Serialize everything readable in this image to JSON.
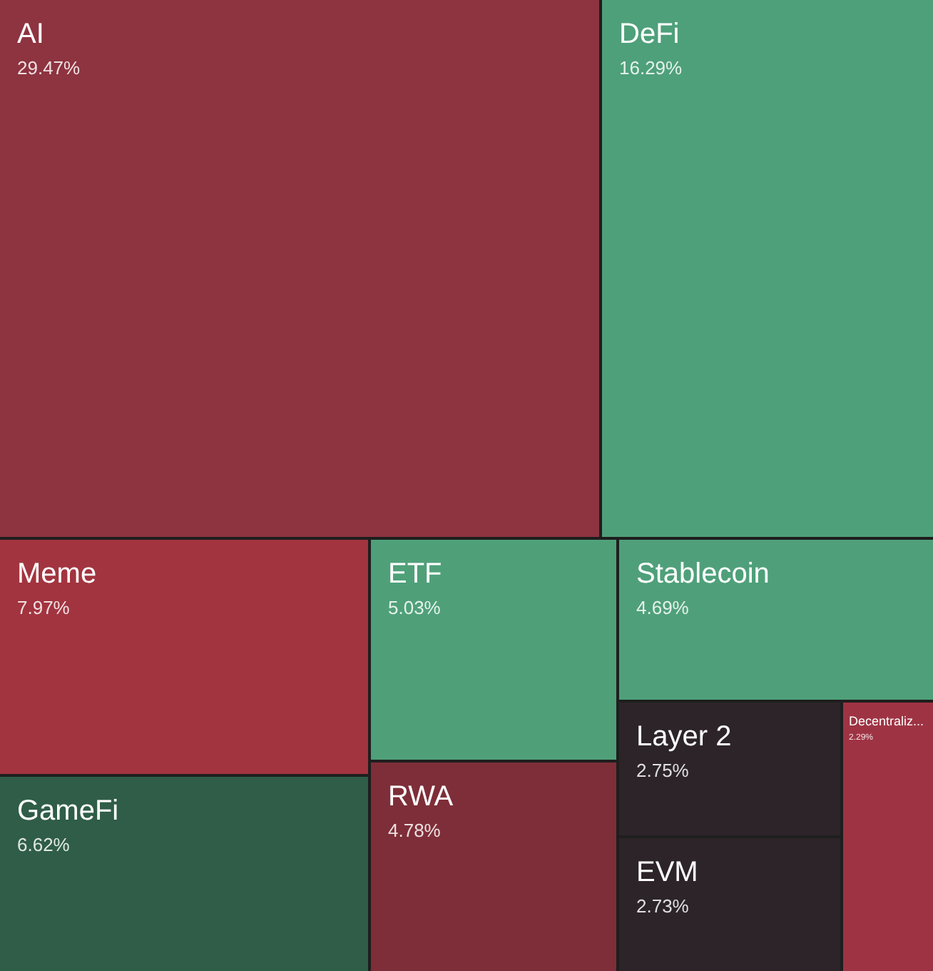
{
  "chart_data": {
    "type": "other",
    "categories": [
      "AI",
      "DeFi",
      "Meme",
      "ETF",
      "Stablecoin",
      "GameFi",
      "RWA",
      "Layer 2",
      "EVM",
      "Decentraliz..."
    ],
    "values": [
      29.47,
      16.29,
      7.97,
      5.03,
      4.69,
      6.62,
      4.78,
      2.75,
      2.73,
      2.29
    ],
    "value_labels": [
      "29.47%",
      "16.29%",
      "7.97%",
      "5.03%",
      "4.69%",
      "6.62%",
      "4.78%",
      "2.75%",
      "2.73%",
      "2.29%"
    ],
    "colors": [
      "#8e3340",
      "#4ea07a",
      "#a2343f",
      "#4fa079",
      "#4fa07a",
      "#2f5d47",
      "#7e2e38",
      "#2c2428",
      "#2c2428",
      "#9e3343"
    ]
  }
}
